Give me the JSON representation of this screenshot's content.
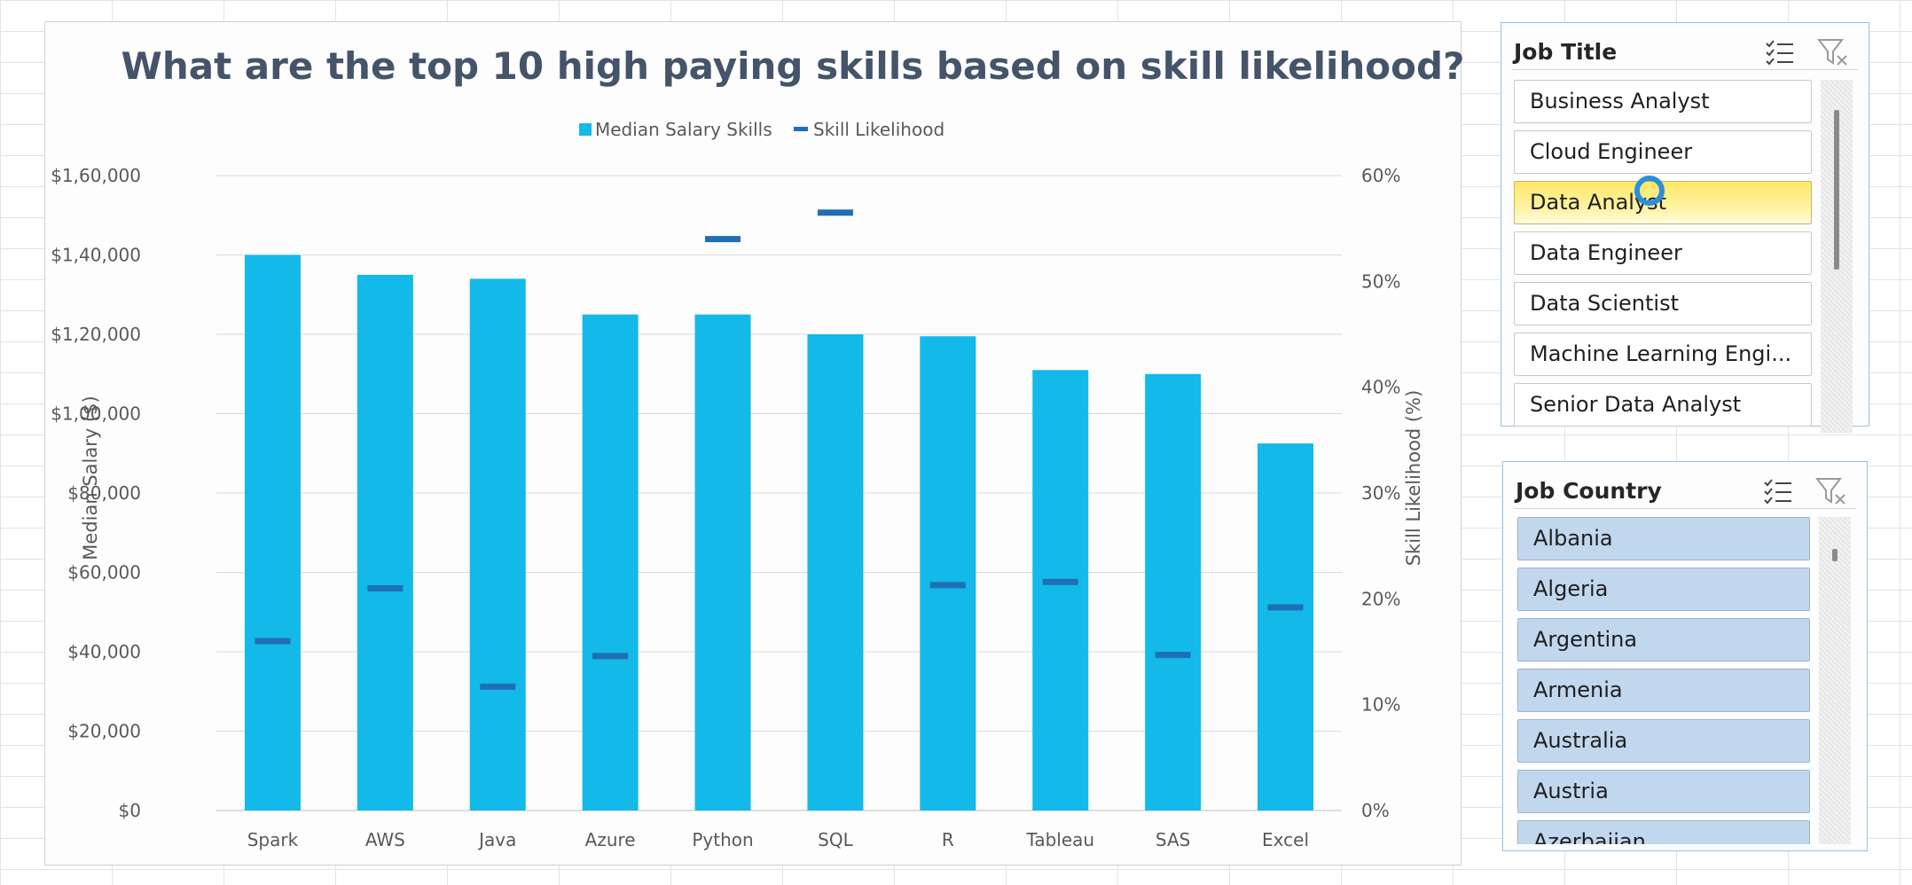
{
  "chart_data": {
    "type": "bar",
    "title": "What are the top 10 high paying skills based on skill likelihood?",
    "categories": [
      "Spark",
      "AWS",
      "Java",
      "Azure",
      "Python",
      "SQL",
      "R",
      "Tableau",
      "SAS",
      "Excel"
    ],
    "series": [
      {
        "name": "Median Salary Skills",
        "kind": "bar",
        "axis": "left",
        "color": "#13b9e8",
        "values": [
          140000,
          135000,
          134000,
          125000,
          125000,
          120000,
          119500,
          111000,
          110000,
          92500
        ]
      },
      {
        "name": "Skill Likelihood",
        "kind": "marker",
        "axis": "right",
        "color": "#1f6fb5",
        "values": [
          16.0,
          21.0,
          11.7,
          14.6,
          54.0,
          56.5,
          21.3,
          21.6,
          14.7,
          19.2
        ]
      }
    ],
    "ylabel": "Median Salary ($)",
    "y2label": "Skill Likelihood (%)",
    "ylim": [
      0,
      160000
    ],
    "y2lim": [
      0,
      60
    ],
    "yticks": [
      "$0",
      "$20,000",
      "$40,000",
      "$60,000",
      "$80,000",
      "$1,00,000",
      "$1,20,000",
      "$1,40,000",
      "$1,60,000"
    ],
    "y2ticks": [
      "0%",
      "10%",
      "20%",
      "30%",
      "40%",
      "50%",
      "60%"
    ],
    "grid": true,
    "legend_position": "top"
  },
  "slicers": {
    "job_title": {
      "title": "Job Title",
      "items": [
        "Business Analyst",
        "Cloud Engineer",
        "Data Analyst",
        "Data Engineer",
        "Data Scientist",
        "Machine Learning Engi...",
        "Senior Data Analyst"
      ],
      "selected": "Data Analyst"
    },
    "job_country": {
      "title": "Job Country",
      "items": [
        "Albania",
        "Algeria",
        "Argentina",
        "Armenia",
        "Australia",
        "Austria",
        "Azerbaijan"
      ]
    }
  },
  "icons": {
    "multi_select": "multi-select-icon",
    "clear_filter": "clear-filter-icon"
  }
}
